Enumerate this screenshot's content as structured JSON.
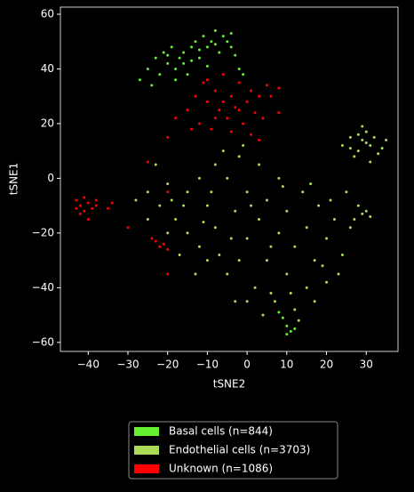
{
  "chart_data": {
    "type": "scatter",
    "x_label": "tSNE2",
    "y_label": "tSNE1",
    "xlim": [
      -47,
      38
    ],
    "ylim": [
      -63.3,
      62.6
    ],
    "xticks": [
      {
        "value": -40,
        "label": "−40"
      },
      {
        "value": -30,
        "label": "−30"
      },
      {
        "value": -20,
        "label": "−20"
      },
      {
        "value": -10,
        "label": "−10"
      },
      0,
      10,
      20,
      30
    ],
    "yticks": [
      {
        "value": -60,
        "label": "−60"
      },
      {
        "value": -40,
        "label": "−40"
      },
      {
        "value": -20,
        "label": "−20"
      },
      0,
      20,
      40,
      60
    ],
    "series": [
      {
        "name": "Basal cells (n=844)",
        "color": "#66ee33",
        "x": [
          -27,
          -25,
          -23,
          -21,
          -20,
          -19,
          -18,
          -17,
          -16,
          -15,
          -14,
          -13,
          -12,
          -11,
          -10,
          -9,
          -8,
          -7,
          -6,
          -5,
          -4,
          -3,
          -2,
          -22,
          -18,
          -16,
          -24,
          -12,
          -8,
          -14,
          9,
          10,
          11,
          12,
          10,
          8,
          -4,
          -1,
          -20,
          -10
        ],
        "values": [
          36,
          40,
          44,
          46,
          42,
          48,
          40,
          44,
          46,
          38,
          48,
          50,
          44,
          52,
          48,
          50,
          54,
          46,
          52,
          50,
          48,
          45,
          40,
          38,
          36,
          42,
          34,
          47,
          49,
          43,
          -51,
          -54,
          -56,
          -55,
          -57,
          -49,
          53,
          38,
          45,
          41
        ]
      },
      {
        "name": "Endothelial cells (n=3703)",
        "color": "#aadd55",
        "x": [
          -25,
          -22,
          -20,
          -18,
          -15,
          -15,
          -12,
          -12,
          -10,
          -10,
          -8,
          -8,
          -5,
          -5,
          -3,
          -2,
          0,
          0,
          2,
          3,
          3,
          5,
          5,
          7,
          8,
          8,
          10,
          10,
          12,
          12,
          14,
          15,
          15,
          17,
          18,
          20,
          20,
          22,
          24,
          25,
          -20,
          -17,
          -13,
          -7,
          -2,
          0,
          4,
          13,
          17,
          23,
          -6,
          -1,
          -25,
          -23,
          -28,
          -3,
          6,
          9,
          16,
          1,
          -9,
          -16,
          11,
          19,
          21,
          -4,
          6,
          26,
          -11,
          -19,
          24,
          26,
          28,
          29,
          30,
          31,
          32,
          33,
          34,
          35,
          27,
          29,
          31,
          26,
          30,
          28,
          28,
          30,
          31,
          29,
          27
        ],
        "values": [
          -5,
          -10,
          -2,
          -15,
          -5,
          -20,
          0,
          -25,
          -10,
          -30,
          5,
          -18,
          0,
          -35,
          -12,
          8,
          -22,
          -5,
          -40,
          5,
          -15,
          -30,
          -8,
          -45,
          -20,
          0,
          -35,
          -12,
          -48,
          -25,
          -5,
          -40,
          -18,
          -30,
          -10,
          -22,
          -38,
          -15,
          -28,
          -5,
          -20,
          -28,
          -35,
          -28,
          -30,
          -45,
          -50,
          -52,
          -45,
          -35,
          10,
          12,
          -15,
          5,
          -8,
          -45,
          -42,
          -3,
          -2,
          -10,
          -5,
          -10,
          -42,
          -32,
          -8,
          -22,
          -25,
          -18,
          -16,
          -8,
          12,
          15,
          10,
          14,
          17,
          12,
          15,
          9,
          11,
          14,
          8,
          19,
          6,
          11,
          13,
          16,
          -10,
          -12,
          -14,
          -13,
          -15
        ]
      },
      {
        "name": "Unknown (n=1086)",
        "color": "#ff0000",
        "x": [
          -15,
          -13,
          -12,
          -11,
          -10,
          -9,
          -8,
          -7,
          -6,
          -5,
          -4,
          -3,
          -2,
          -1,
          0,
          1,
          2,
          3,
          4,
          5,
          -14,
          -8,
          -6,
          -4,
          -2,
          1,
          6,
          8,
          -10,
          -20,
          -18,
          -25,
          -20,
          3,
          8,
          -43,
          -42,
          -41,
          -40,
          -42,
          -39,
          -41,
          -43,
          -40,
          -38,
          -34,
          -35,
          -23,
          -21,
          -20,
          -24,
          -22,
          -38,
          -30,
          -20
        ],
        "values": [
          25,
          30,
          20,
          35,
          28,
          18,
          32,
          25,
          38,
          22,
          30,
          26,
          35,
          20,
          28,
          32,
          24,
          30,
          22,
          34,
          18,
          22,
          28,
          17,
          25,
          16,
          30,
          33,
          36,
          15,
          22,
          6,
          -5,
          14,
          24,
          -8,
          -10,
          -12,
          -9,
          -13,
          -11,
          -7,
          -11,
          -15,
          -10,
          -9,
          -11,
          -23,
          -24,
          -26,
          -22,
          -25,
          -8,
          -18,
          -35
        ]
      }
    ]
  }
}
